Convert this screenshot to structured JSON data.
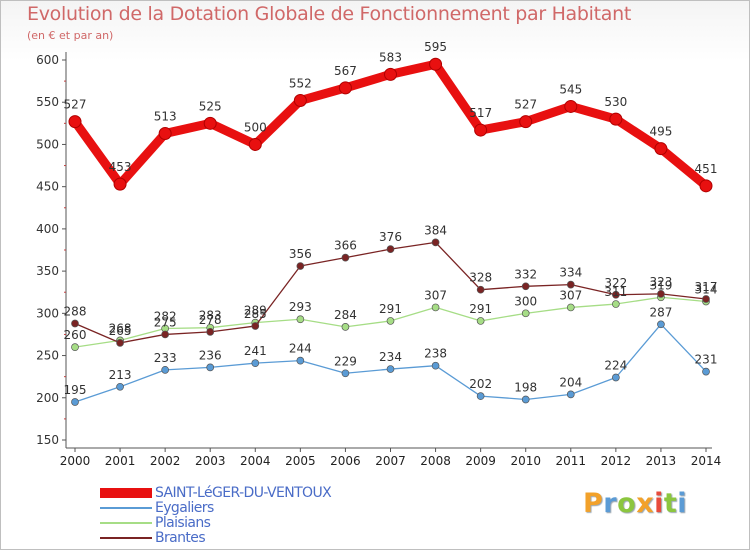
{
  "chart_data": {
    "type": "line",
    "title": "Evolution de la Dotation Globale de Fonctionnement par Habitant",
    "subtitle": "(en € et par an)",
    "xlabel": "",
    "ylabel": "",
    "x": [
      "2000",
      "2001",
      "2002",
      "2003",
      "2004",
      "2005",
      "2006",
      "2007",
      "2008",
      "2009",
      "2010",
      "2011",
      "2012",
      "2013",
      "2014"
    ],
    "ylim": [
      150,
      600
    ],
    "yticks": [
      "150",
      "200",
      "250",
      "300",
      "350",
      "400",
      "450",
      "500",
      "550",
      "600"
    ],
    "grid": false,
    "legend_position": "bottom-left",
    "series": [
      {
        "name": "SAINT-LéGER-DU-VENTOUX",
        "color": "#e81010",
        "values": [
          527,
          453,
          513,
          525,
          500,
          552,
          567,
          583,
          595,
          517,
          527,
          545,
          530,
          495,
          451
        ],
        "labels": [
          "527",
          "453",
          "513",
          "525",
          "500",
          "552",
          "567",
          "583",
          "595",
          "517",
          "527",
          "545",
          "530",
          "495",
          "451"
        ]
      },
      {
        "name": "Eygaliers",
        "color": "#5a9bd5",
        "values": [
          195,
          213,
          233,
          236,
          241,
          244,
          229,
          234,
          238,
          202,
          198,
          204,
          224,
          287,
          231
        ],
        "labels": [
          "195",
          "213",
          "233",
          "236",
          "241",
          "244",
          "229",
          "234",
          "238",
          "202",
          "198",
          "204",
          "224",
          "287",
          "231"
        ]
      },
      {
        "name": "Plaisians",
        "color": "#a6dd86",
        "values": [
          260,
          268,
          282,
          283,
          289,
          293,
          284,
          291,
          307,
          291,
          300,
          307,
          311,
          319,
          314
        ],
        "labels": [
          "260",
          "268",
          "282",
          "283",
          "289",
          "293",
          "284",
          "291",
          "307",
          "291",
          "300",
          "307",
          "311",
          "319",
          "314"
        ]
      },
      {
        "name": "Brantes",
        "color": "#7a2424",
        "values": [
          288,
          265,
          275,
          278,
          285,
          356,
          366,
          376,
          384,
          328,
          332,
          334,
          322,
          323,
          317
        ],
        "labels": [
          "288",
          "265",
          "275",
          "278",
          "285",
          "356",
          "366",
          "376",
          "384",
          "328",
          "332",
          "334",
          "322",
          "323",
          "317"
        ]
      }
    ]
  },
  "brand": {
    "letters": [
      "P",
      "r",
      "o",
      "x",
      "i",
      "t",
      "i"
    ],
    "letter_colors": [
      "#f2a12a",
      "#5b9bd5",
      "#8cc63f",
      "#f2a12a",
      "#e84b3c",
      "#8cc63f",
      "#5b9bd5"
    ]
  }
}
